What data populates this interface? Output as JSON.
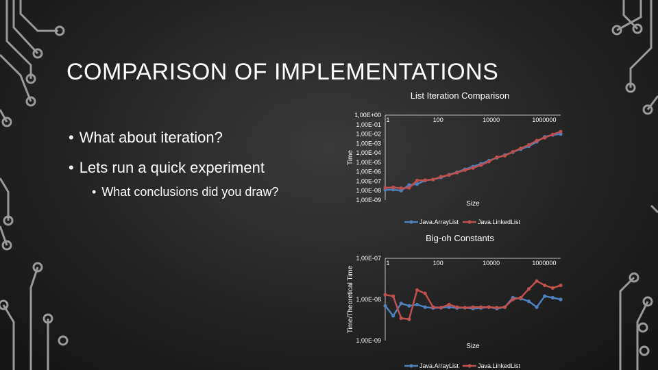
{
  "slide": {
    "title": "COMPARISON OF IMPLEMENTATIONS",
    "bullets": [
      "What about iteration?",
      "Lets run a quick experiment",
      "What conclusions did you draw?"
    ],
    "bullet_glyph": "•"
  },
  "colors": {
    "array_list": "#4f81bd",
    "linked_list": "#c0504d",
    "decoration": "#9a9a9a"
  },
  "chart_data": [
    {
      "type": "line",
      "title": "List Iteration Comparison",
      "xlabel": "Size",
      "ylabel": "Time",
      "x_scale": "log",
      "y_scale": "log",
      "x_ticks": [
        "1",
        "100",
        "10000",
        "1000000"
      ],
      "y_ticks": [
        "1,00E+00",
        "1,00E-01",
        "1,00E-02",
        "1,00E-03",
        "1,00E-04",
        "1,00E-05",
        "1,00E-06",
        "1,00E-07",
        "1,00E-08",
        "1,00E-09"
      ],
      "legend_position": "bottom",
      "x": [
        1,
        2,
        4,
        8,
        16,
        32,
        64,
        128,
        256,
        512,
        1024,
        2048,
        4096,
        8192,
        16384,
        32768,
        65536,
        131072,
        262144,
        524288,
        1048576,
        2097152,
        4194304
      ],
      "series": [
        {
          "name": "Java.ArrayList",
          "values": [
            1.2e-08,
            1.3e-08,
            1e-08,
            4e-08,
            5e-08,
            1.2e-07,
            1.5e-07,
            2.5e-07,
            5e-07,
            9e-07,
            1.8e-06,
            3.5e-06,
            7e-06,
            1.5e-05,
            3e-05,
            6e-05,
            0.00012,
            0.00025,
            0.0005,
            0.0015,
            0.005,
            0.008,
            0.01
          ]
        },
        {
          "name": "Java.LinkedList",
          "values": [
            2e-08,
            2.2e-08,
            1.8e-08,
            2e-08,
            1.2e-07,
            1.3e-07,
            1.5e-07,
            3e-07,
            4.5e-07,
            8e-07,
            1.5e-06,
            2.5e-06,
            5e-06,
            1.2e-05,
            3.5e-05,
            5e-05,
            0.00013,
            0.0003,
            0.0007,
            0.002,
            0.004,
            0.009,
            0.018
          ]
        }
      ]
    },
    {
      "type": "line",
      "title": "Big-oh Constants",
      "xlabel": "Size",
      "ylabel": "Time/Theoretical Time",
      "x_scale": "log",
      "y_scale": "log",
      "x_ticks": [
        "1",
        "100",
        "10000",
        "1000000"
      ],
      "y_ticks": [
        "1,00E-07",
        "1,00E-08",
        "1,00E-09"
      ],
      "legend_position": "bottom",
      "x": [
        1,
        2,
        4,
        8,
        16,
        32,
        64,
        128,
        256,
        512,
        1024,
        2048,
        4096,
        8192,
        16384,
        32768,
        65536,
        131072,
        262144,
        524288,
        1048576,
        2097152,
        4194304
      ],
      "series": [
        {
          "name": "Java.ArrayList",
          "values": [
            7e-09,
            4e-09,
            8e-09,
            7e-09,
            7.5e-09,
            6.5e-09,
            6.2e-09,
            6.3e-09,
            6.5e-09,
            6.2e-09,
            6.3e-09,
            6e-09,
            6.2e-09,
            6.5e-09,
            6e-09,
            6.5e-09,
            1.1e-08,
            1.05e-08,
            9e-09,
            6.5e-09,
            1.2e-08,
            1.1e-08,
            1e-08
          ]
        },
        {
          "name": "Java.LinkedList",
          "values": [
            1.3e-08,
            1.2e-08,
            3.5e-09,
            3.3e-09,
            1.7e-08,
            1.4e-08,
            6.5e-09,
            6.3e-09,
            7.5e-09,
            6.5e-09,
            6.3e-09,
            6.5e-09,
            6.5e-09,
            6.5e-09,
            6.3e-09,
            6.5e-09,
            1e-08,
            1.1e-08,
            1.8e-08,
            2.8e-08,
            2.2e-08,
            1.9e-08,
            2.2e-08
          ]
        }
      ]
    }
  ]
}
